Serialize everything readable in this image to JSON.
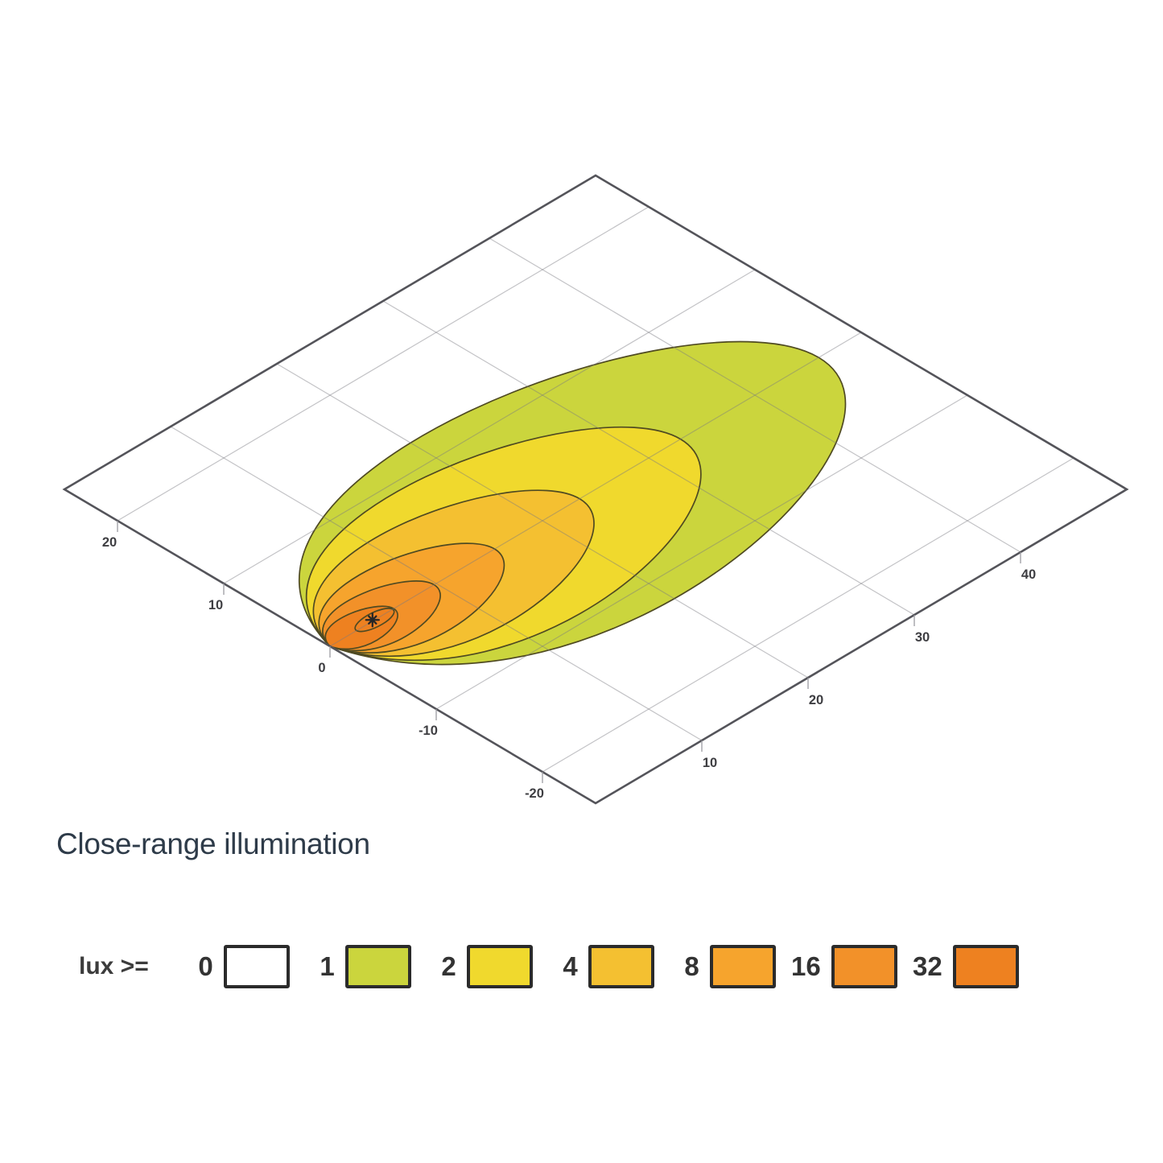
{
  "title": "Close-range illumination",
  "legend": {
    "label": "lux >=",
    "items": [
      {
        "value": "0",
        "color": "#ffffff"
      },
      {
        "value": "1",
        "color": "#cbd53d"
      },
      {
        "value": "2",
        "color": "#f0d92d"
      },
      {
        "value": "4",
        "color": "#f4c031"
      },
      {
        "value": "8",
        "color": "#f6a42d"
      },
      {
        "value": "16",
        "color": "#f29129"
      },
      {
        "value": "32",
        "color": "#ee8120"
      }
    ]
  },
  "chart_data": {
    "type": "contour",
    "subtype": "iso-lux footprint, 3D tilted ground plane",
    "title": "Close-range illumination",
    "distance_axis": {
      "range_m": [
        0,
        50
      ],
      "ticks": [
        10,
        20,
        30,
        40
      ]
    },
    "lateral_axis": {
      "range_m": [
        -25,
        25
      ],
      "ticks": [
        20,
        10,
        0,
        -10,
        -20
      ]
    },
    "grid": true,
    "lamp_position": {
      "distance_m": 0,
      "lateral_m": 0
    },
    "hotspot": {
      "distance_m": 4.1,
      "lateral_m": 0.1
    },
    "contours_lux": [
      {
        "lux": 1,
        "reach_m": 46,
        "half_width_m": 13,
        "color": "#cbd53d"
      },
      {
        "lux": 2,
        "reach_m": 33,
        "half_width_m": 9.6,
        "color": "#f0d92d"
      },
      {
        "lux": 4,
        "reach_m": 23.5,
        "half_width_m": 6.8,
        "color": "#f4c031"
      },
      {
        "lux": 8,
        "reach_m": 15.5,
        "half_width_m": 4.5,
        "color": "#f6a42d"
      },
      {
        "lux": 16,
        "reach_m": 9.8,
        "half_width_m": 2.9,
        "color": "#f29129"
      },
      {
        "lux": 32,
        "reach_m": 6.0,
        "half_width_m": 1.8,
        "color": "#ee8120"
      }
    ],
    "inner_ring": {
      "center_m": 4.2,
      "rx_m": 1.7,
      "ry_m": 0.7
    },
    "colors": {
      "plot_border": "#54545a",
      "grid_line": "#c7c7cb",
      "contour_line": "#4f4a22",
      "tick_text": "#3e3e42"
    }
  }
}
